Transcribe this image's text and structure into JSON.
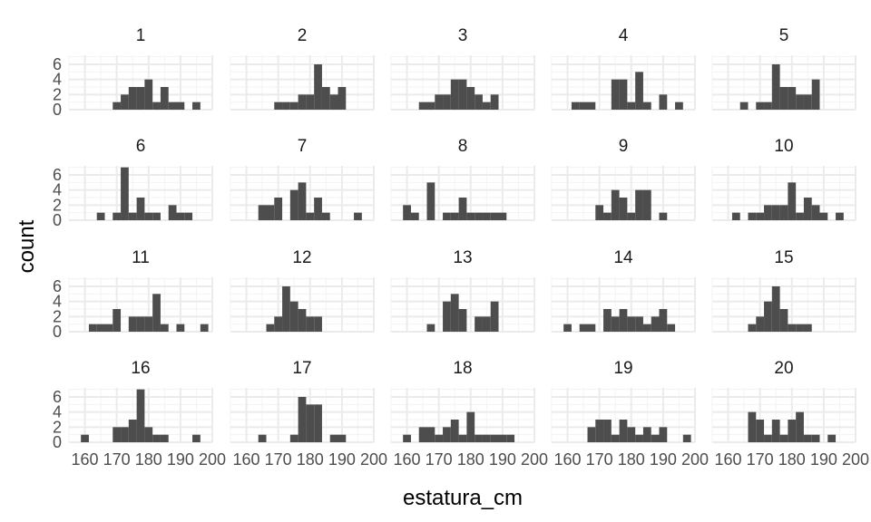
{
  "chart_data": {
    "type": "histogram",
    "facet_count": 20,
    "xlabel": "estatura_cm",
    "ylabel": "count",
    "xlim": [
      155,
      200
    ],
    "ylim": [
      0,
      7.2
    ],
    "x_ticks": [
      160,
      170,
      180,
      190,
      200
    ],
    "y_ticks": [
      0,
      2,
      4,
      6
    ],
    "bin_width": 2.5,
    "bin_start": 158.75,
    "grid": true,
    "legend": "none",
    "colors": {
      "bar": "#4d4d4d",
      "panel_bg": "#ffffff",
      "grid_major": "#ebebeb",
      "grid_minor": "#f3f3f3"
    },
    "panels": [
      {
        "label": "1",
        "counts": [
          0,
          0,
          0,
          0,
          1,
          2,
          3,
          3,
          4,
          1,
          3,
          1,
          1,
          0,
          1,
          0,
          0,
          0
        ]
      },
      {
        "label": "2",
        "counts": [
          0,
          0,
          0,
          0,
          1,
          1,
          1,
          2,
          2,
          6,
          3,
          2,
          3,
          0,
          0,
          0,
          0,
          0
        ]
      },
      {
        "label": "3",
        "counts": [
          0,
          0,
          1,
          1,
          2,
          2,
          4,
          4,
          3,
          2,
          1,
          2,
          0,
          0,
          0,
          0,
          0,
          0
        ]
      },
      {
        "label": "4",
        "counts": [
          0,
          1,
          1,
          1,
          0,
          0,
          4,
          4,
          1,
          5,
          1,
          0,
          2,
          0,
          1,
          0,
          0,
          0
        ]
      },
      {
        "label": "5",
        "counts": [
          0,
          0,
          1,
          0,
          1,
          1,
          6,
          3,
          3,
          2,
          2,
          4,
          0,
          0,
          0,
          0,
          0,
          0
        ]
      },
      {
        "label": "6",
        "counts": [
          0,
          0,
          1,
          0,
          1,
          7,
          1,
          3,
          1,
          1,
          0,
          2,
          1,
          1,
          0,
          0,
          0,
          0
        ]
      },
      {
        "label": "7",
        "counts": [
          0,
          0,
          2,
          2,
          3,
          0,
          4,
          5,
          1,
          3,
          1,
          0,
          0,
          0,
          1,
          0,
          0,
          0
        ]
      },
      {
        "label": "8",
        "counts": [
          2,
          1,
          0,
          5,
          0,
          1,
          1,
          3,
          1,
          1,
          1,
          1,
          1,
          0,
          0,
          0,
          0,
          0
        ]
      },
      {
        "label": "9",
        "counts": [
          0,
          0,
          0,
          0,
          2,
          1,
          4,
          3,
          1,
          4,
          4,
          0,
          1,
          0,
          0,
          0,
          0,
          0
        ]
      },
      {
        "label": "10",
        "counts": [
          0,
          1,
          0,
          1,
          1,
          2,
          2,
          2,
          5,
          1,
          3,
          2,
          1,
          0,
          1,
          0,
          0,
          0
        ]
      },
      {
        "label": "11",
        "counts": [
          0,
          1,
          1,
          1,
          3,
          0,
          2,
          2,
          2,
          5,
          1,
          0,
          1,
          0,
          0,
          1,
          0,
          0
        ]
      },
      {
        "label": "12",
        "counts": [
          0,
          0,
          0,
          1,
          2,
          6,
          4,
          3,
          2,
          2,
          0,
          0,
          0,
          0,
          0,
          0,
          0,
          0
        ]
      },
      {
        "label": "13",
        "counts": [
          0,
          0,
          0,
          1,
          0,
          4,
          5,
          3,
          0,
          2,
          2,
          4,
          0,
          0,
          0,
          0,
          0,
          0
        ]
      },
      {
        "label": "14",
        "counts": [
          1,
          0,
          1,
          1,
          0,
          3,
          2,
          3,
          2,
          2,
          1,
          2,
          3,
          1,
          0,
          0,
          0,
          0
        ]
      },
      {
        "label": "15",
        "counts": [
          0,
          0,
          0,
          1,
          2,
          4,
          6,
          3,
          1,
          1,
          1,
          0,
          0,
          0,
          0,
          0,
          0,
          0
        ]
      },
      {
        "label": "16",
        "counts": [
          1,
          0,
          0,
          0,
          2,
          2,
          3,
          7,
          2,
          1,
          1,
          0,
          0,
          0,
          1,
          0,
          0,
          0
        ]
      },
      {
        "label": "17",
        "counts": [
          0,
          0,
          1,
          0,
          0,
          0,
          1,
          6,
          5,
          5,
          0,
          1,
          1,
          0,
          0,
          0,
          0,
          0
        ]
      },
      {
        "label": "18",
        "counts": [
          1,
          0,
          2,
          2,
          1,
          2,
          3,
          1,
          4,
          1,
          1,
          1,
          1,
          1,
          0,
          0,
          0,
          0
        ]
      },
      {
        "label": "19",
        "counts": [
          0,
          0,
          0,
          2,
          3,
          3,
          1,
          3,
          2,
          1,
          2,
          1,
          2,
          0,
          0,
          1,
          0,
          0
        ]
      },
      {
        "label": "20",
        "counts": [
          0,
          0,
          0,
          4,
          3,
          1,
          3,
          1,
          3,
          4,
          1,
          1,
          0,
          1,
          0,
          0,
          0,
          0
        ]
      }
    ]
  }
}
